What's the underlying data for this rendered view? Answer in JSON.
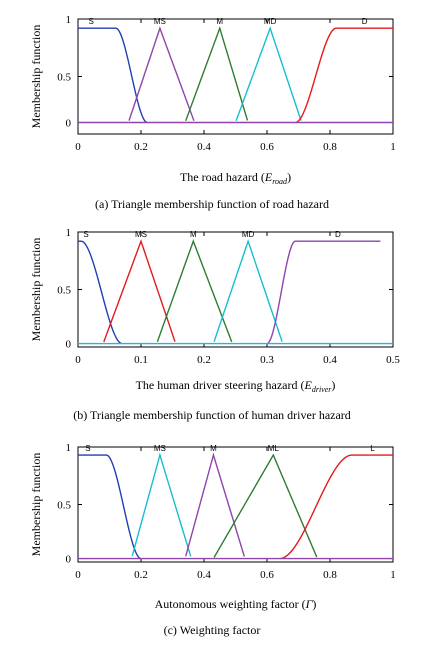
{
  "chart_data": [
    {
      "type": "line",
      "caption": "(a) Triangle membership function of road hazard",
      "xlabel": "The road hazard (",
      "xlabel_sym": "E",
      "xlabel_sub": "road",
      "xlabel_end": ")",
      "ylabel": "Membership function",
      "xlim": [
        0,
        1
      ],
      "ylim": [
        0,
        1
      ],
      "xticks": [
        "0",
        "0.2",
        "0.4",
        "0.6",
        "0.8",
        "1"
      ],
      "yticks": [
        "0",
        "0.5",
        "1"
      ],
      "baseline": 0.1,
      "series": [
        {
          "name": "S",
          "shape": "zmf",
          "params": [
            0.0,
            0.12,
            0.22
          ],
          "top": 0.92,
          "color": "#1f3fb4"
        },
        {
          "name": "MS",
          "shape": "tri",
          "params": [
            0.16,
            0.26,
            0.37
          ],
          "top": 0.92,
          "color": "#8e44ad"
        },
        {
          "name": "M",
          "shape": "tri",
          "params": [
            0.34,
            0.45,
            0.54
          ],
          "top": 0.92,
          "color": "#2e7d32"
        },
        {
          "name": "MD",
          "shape": "tri",
          "params": [
            0.5,
            0.61,
            0.71
          ],
          "top": 0.92,
          "color": "#17becf"
        },
        {
          "name": "D",
          "shape": "smf",
          "params": [
            0.69,
            0.82,
            1.0
          ],
          "top": 0.92,
          "color": "#e41a1c"
        }
      ],
      "extra_lines": [
        {
          "shape": "flat",
          "params": [
            0.0,
            1.0
          ],
          "level": 0.1,
          "color": "#8e44ad"
        }
      ]
    },
    {
      "type": "line",
      "caption": "(b) Triangle membership function of human driver hazard",
      "xlabel": "The human driver steering hazard (",
      "xlabel_sym": "E",
      "xlabel_sub": "driver",
      "xlabel_end": ")",
      "ylabel": "Membership function",
      "xlim": [
        0,
        0.5
      ],
      "ylim": [
        0,
        1
      ],
      "xticks": [
        "0",
        "0.1",
        "0.2",
        "0.3",
        "0.4",
        "0.5"
      ],
      "yticks": [
        "0",
        "0.5",
        "1"
      ],
      "baseline": 0.03,
      "series": [
        {
          "name": "S",
          "shape": "zmf",
          "params": [
            0.0,
            0.005,
            0.07
          ],
          "top": 0.92,
          "color": "#1f3fb4"
        },
        {
          "name": "MS",
          "shape": "tri",
          "params": [
            0.04,
            0.1,
            0.155
          ],
          "top": 0.92,
          "color": "#e41a1c"
        },
        {
          "name": "M",
          "shape": "tri",
          "params": [
            0.125,
            0.183,
            0.245
          ],
          "top": 0.92,
          "color": "#2e7d32"
        },
        {
          "name": "MD",
          "shape": "tri",
          "params": [
            0.215,
            0.27,
            0.325
          ],
          "top": 0.92,
          "color": "#17becf"
        },
        {
          "name": "D",
          "shape": "smf",
          "params": [
            0.3,
            0.345,
            0.48
          ],
          "top": 0.92,
          "color": "#8e44ad"
        }
      ],
      "extra_lines": [
        {
          "shape": "flat",
          "params": [
            0.0,
            0.5
          ],
          "level": 0.03,
          "color": "#17becf"
        }
      ]
    },
    {
      "type": "line",
      "caption": "(c) Weighting factor",
      "xlabel": "Autonomous weighting factor (",
      "xlabel_sym": "Γ",
      "xlabel_sub": "",
      "xlabel_end": ")",
      "ylabel": "Membership function",
      "xlim": [
        0,
        1
      ],
      "ylim": [
        0,
        1
      ],
      "xticks": [
        "0",
        "0.2",
        "0.4",
        "0.6",
        "0.8",
        "1"
      ],
      "yticks": [
        "0",
        "0.5",
        "1"
      ],
      "baseline": 0.03,
      "series": [
        {
          "name": "S",
          "shape": "zmf",
          "params": [
            0.0,
            0.09,
            0.2
          ],
          "top": 0.93,
          "color": "#1f3fb4"
        },
        {
          "name": "MS",
          "shape": "tri",
          "params": [
            0.17,
            0.26,
            0.36
          ],
          "top": 0.93,
          "color": "#17becf"
        },
        {
          "name": "M",
          "shape": "tri",
          "params": [
            0.34,
            0.43,
            0.53
          ],
          "top": 0.93,
          "color": "#8e44ad"
        },
        {
          "name": "ML",
          "shape": "tri",
          "params": [
            0.43,
            0.62,
            0.76
          ],
          "top": 0.93,
          "color": "#2e7d32"
        },
        {
          "name": "L",
          "shape": "smf",
          "params": [
            0.64,
            0.87,
            1.0
          ],
          "top": 0.93,
          "color": "#e41a1c"
        }
      ],
      "extra_lines": [
        {
          "shape": "flat",
          "params": [
            0.0,
            1.0
          ],
          "level": 0.03,
          "color": "#8e44ad"
        }
      ]
    }
  ]
}
